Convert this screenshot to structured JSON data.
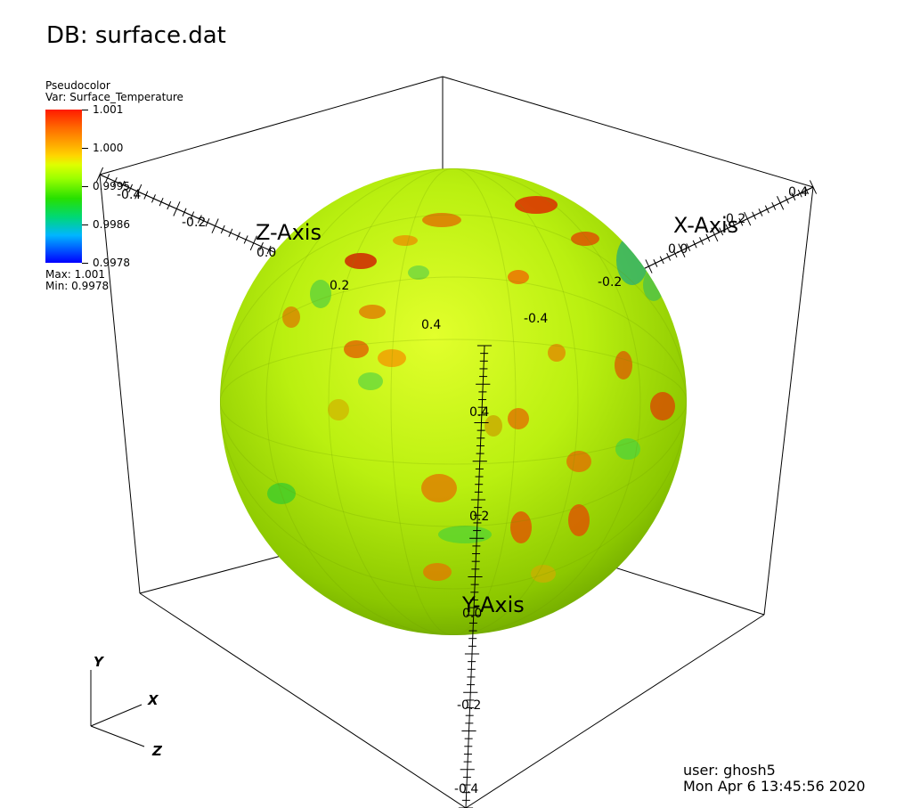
{
  "title": "DB: surface.dat",
  "legend": {
    "plot_type": "Pseudocolor",
    "variable": "Var: Surface_Temperature",
    "labels": [
      "1.001",
      "1.000",
      "0.9995",
      "0.9986",
      "0.9978"
    ],
    "max_text": "Max:  1.001",
    "min_text": "Min:  0.9978"
  },
  "axes": {
    "z_title": "Z-Axis",
    "x_title": "X-Axis",
    "y_title": "Y-Axis",
    "z_ticks": [
      "-0.4",
      "-0.2",
      "0.0",
      "0.2",
      "0.4"
    ],
    "x_ticks": [
      "0.4",
      "0.2",
      "0.0",
      "-0.2",
      "-0.4"
    ],
    "y_ticks": [
      "0.4",
      "0.2",
      "0.0",
      "-0.2",
      "-0.4"
    ]
  },
  "triad": {
    "y": "Y",
    "x": "X",
    "z": "Z"
  },
  "user_info": {
    "user": "user: ghosh5",
    "date": "Mon Apr  6 13:45:56 2020"
  },
  "colors": {
    "sphere_base": "#a8e000",
    "legend_top": "#ff1a00",
    "legend_bottom": "#0000ff"
  }
}
